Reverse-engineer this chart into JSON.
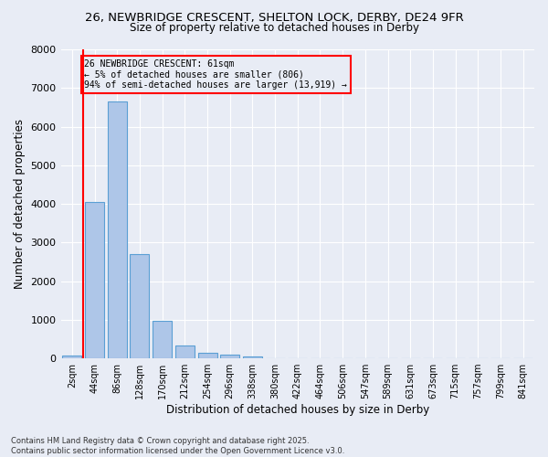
{
  "title_line1": "26, NEWBRIDGE CRESCENT, SHELTON LOCK, DERBY, DE24 9FR",
  "title_line2": "Size of property relative to detached houses in Derby",
  "xlabel": "Distribution of detached houses by size in Derby",
  "ylabel": "Number of detached properties",
  "footer_line1": "Contains HM Land Registry data © Crown copyright and database right 2025.",
  "footer_line2": "Contains public sector information licensed under the Open Government Licence v3.0.",
  "bar_labels": [
    "2sqm",
    "44sqm",
    "86sqm",
    "128sqm",
    "170sqm",
    "212sqm",
    "254sqm",
    "296sqm",
    "338sqm",
    "380sqm",
    "422sqm",
    "464sqm",
    "506sqm",
    "547sqm",
    "589sqm",
    "631sqm",
    "673sqm",
    "715sqm",
    "757sqm",
    "799sqm",
    "841sqm"
  ],
  "bar_values": [
    70,
    4050,
    6650,
    2700,
    980,
    330,
    135,
    100,
    55,
    0,
    0,
    0,
    0,
    0,
    0,
    0,
    0,
    0,
    0,
    0,
    0
  ],
  "bar_color": "#aec6e8",
  "bar_edge_color": "#5a9fd4",
  "bg_color": "#e8ecf5",
  "grid_color": "#ffffff",
  "vline_x": 0.5,
  "vline_color": "red",
  "annotation_text": "26 NEWBRIDGE CRESCENT: 61sqm\n← 5% of detached houses are smaller (806)\n94% of semi-detached houses are larger (13,919) →",
  "annotation_box_color": "red",
  "ylim": [
    0,
    8000
  ],
  "yticks": [
    0,
    1000,
    2000,
    3000,
    4000,
    5000,
    6000,
    7000,
    8000
  ]
}
